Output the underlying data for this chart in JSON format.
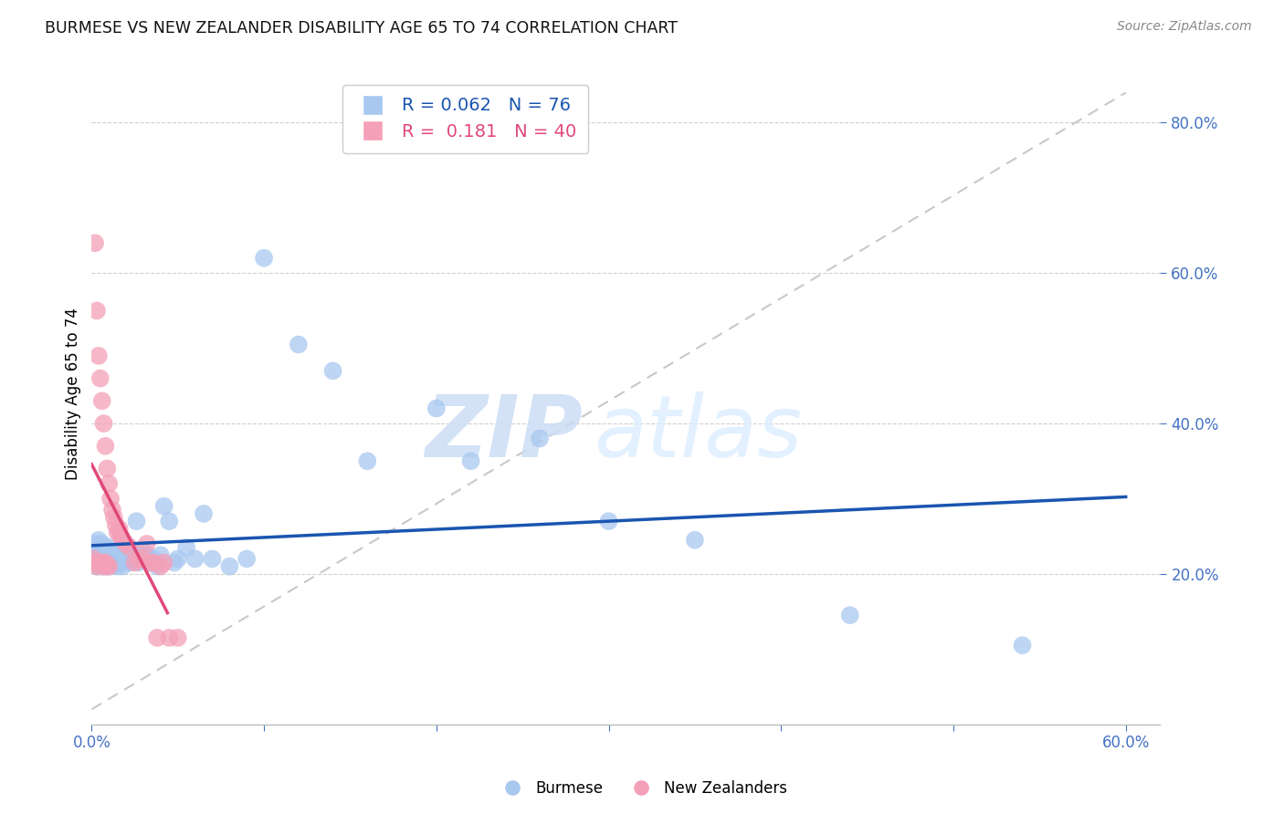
{
  "title": "BURMESE VS NEW ZEALANDER DISABILITY AGE 65 TO 74 CORRELATION CHART",
  "source": "Source: ZipAtlas.com",
  "ylabel": "Disability Age 65 to 74",
  "burmese_R": 0.062,
  "burmese_N": 76,
  "nz_R": 0.181,
  "nz_N": 40,
  "xlim": [
    0.0,
    0.62
  ],
  "ylim": [
    0.0,
    0.88
  ],
  "yticks": [
    0.2,
    0.4,
    0.6,
    0.8
  ],
  "xticks": [
    0.0,
    0.6
  ],
  "burmese_color": "#a8c8f0",
  "nz_color": "#f4a0b8",
  "burmese_line_color": "#1a55b0",
  "nz_line_color": "#e04878",
  "grid_color": "#d0d0d0",
  "background_color": "#ffffff",
  "watermark_zip": "ZIP",
  "watermark_atlas": "atlas",
  "burmese_x": [
    0.001,
    0.002,
    0.002,
    0.003,
    0.003,
    0.003,
    0.004,
    0.004,
    0.004,
    0.005,
    0.005,
    0.005,
    0.006,
    0.006,
    0.006,
    0.006,
    0.007,
    0.007,
    0.007,
    0.008,
    0.008,
    0.008,
    0.009,
    0.009,
    0.009,
    0.01,
    0.01,
    0.01,
    0.011,
    0.011,
    0.012,
    0.012,
    0.013,
    0.013,
    0.014,
    0.015,
    0.015,
    0.016,
    0.017,
    0.018,
    0.019,
    0.02,
    0.021,
    0.022,
    0.023,
    0.025,
    0.026,
    0.027,
    0.028,
    0.03,
    0.032,
    0.034,
    0.036,
    0.038,
    0.04,
    0.042,
    0.045,
    0.048,
    0.05,
    0.055,
    0.06,
    0.065,
    0.07,
    0.08,
    0.09,
    0.1,
    0.12,
    0.14,
    0.16,
    0.2,
    0.22,
    0.26,
    0.3,
    0.35,
    0.44,
    0.54
  ],
  "burmese_y": [
    0.23,
    0.22,
    0.24,
    0.21,
    0.225,
    0.235,
    0.215,
    0.23,
    0.245,
    0.22,
    0.21,
    0.235,
    0.225,
    0.215,
    0.23,
    0.24,
    0.22,
    0.21,
    0.23,
    0.225,
    0.215,
    0.235,
    0.22,
    0.21,
    0.23,
    0.215,
    0.225,
    0.235,
    0.22,
    0.21,
    0.225,
    0.215,
    0.23,
    0.22,
    0.215,
    0.21,
    0.225,
    0.22,
    0.215,
    0.21,
    0.22,
    0.23,
    0.225,
    0.215,
    0.22,
    0.225,
    0.27,
    0.215,
    0.22,
    0.23,
    0.225,
    0.215,
    0.22,
    0.21,
    0.225,
    0.29,
    0.27,
    0.215,
    0.22,
    0.235,
    0.22,
    0.28,
    0.22,
    0.21,
    0.22,
    0.62,
    0.505,
    0.47,
    0.35,
    0.42,
    0.35,
    0.38,
    0.27,
    0.245,
    0.145,
    0.105
  ],
  "nz_x": [
    0.001,
    0.002,
    0.002,
    0.003,
    0.003,
    0.004,
    0.004,
    0.005,
    0.005,
    0.006,
    0.006,
    0.007,
    0.007,
    0.008,
    0.008,
    0.009,
    0.009,
    0.01,
    0.01,
    0.011,
    0.012,
    0.013,
    0.014,
    0.015,
    0.016,
    0.017,
    0.018,
    0.02,
    0.022,
    0.025,
    0.027,
    0.03,
    0.032,
    0.034,
    0.036,
    0.038,
    0.04,
    0.042,
    0.045,
    0.05
  ],
  "nz_y": [
    0.22,
    0.64,
    0.215,
    0.55,
    0.21,
    0.49,
    0.215,
    0.46,
    0.215,
    0.43,
    0.215,
    0.4,
    0.21,
    0.37,
    0.215,
    0.34,
    0.21,
    0.32,
    0.21,
    0.3,
    0.285,
    0.275,
    0.265,
    0.255,
    0.26,
    0.25,
    0.245,
    0.24,
    0.235,
    0.215,
    0.22,
    0.22,
    0.24,
    0.215,
    0.215,
    0.115,
    0.21,
    0.215,
    0.115,
    0.115
  ]
}
